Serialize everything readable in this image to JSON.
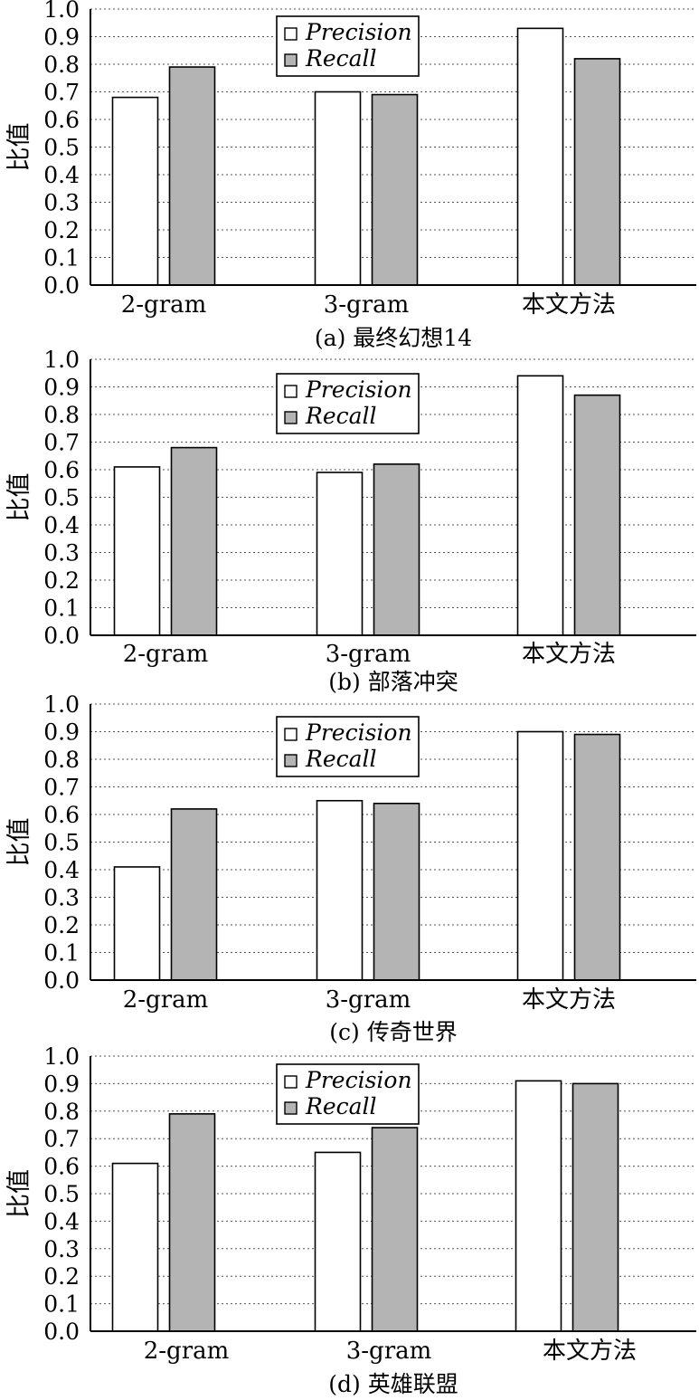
{
  "chart_data": [
    {
      "type": "bar",
      "caption": "(a) 最终幻想14",
      "ylabel": "比值",
      "categories": [
        "2-gram",
        "3-gram",
        "本文方法"
      ],
      "series": [
        {
          "name": "Precision",
          "values": [
            0.68,
            0.7,
            0.93
          ],
          "color": "#ffffff"
        },
        {
          "name": "Recall",
          "values": [
            0.79,
            0.69,
            0.82
          ],
          "color": "#b4b4b4"
        }
      ],
      "ylim": [
        0,
        1.0
      ],
      "yticks": [
        "0.0",
        "0.1",
        "0.2",
        "0.3",
        "0.4",
        "0.5",
        "0.6",
        "0.7",
        "0.8",
        "0.9",
        "1.0"
      ],
      "grid": true,
      "legend": "top-center"
    },
    {
      "type": "bar",
      "caption": "(b) 部落冲突",
      "ylabel": "比值",
      "categories": [
        "2-gram",
        "3-gram",
        "本文方法"
      ],
      "series": [
        {
          "name": "Precision",
          "values": [
            0.61,
            0.59,
            0.94
          ],
          "color": "#ffffff"
        },
        {
          "name": "Recall",
          "values": [
            0.68,
            0.62,
            0.87
          ],
          "color": "#b4b4b4"
        }
      ],
      "ylim": [
        0,
        1.0
      ],
      "yticks": [
        "0.0",
        "0.1",
        "0.2",
        "0.3",
        "0.4",
        "0.5",
        "0.6",
        "0.7",
        "0.8",
        "0.9",
        "1.0"
      ],
      "grid": true,
      "legend": "top-center"
    },
    {
      "type": "bar",
      "caption": "(c) 传奇世界",
      "ylabel": "比值",
      "categories": [
        "2-gram",
        "3-gram",
        "本文方法"
      ],
      "series": [
        {
          "name": "Precision",
          "values": [
            0.41,
            0.65,
            0.9
          ],
          "color": "#ffffff"
        },
        {
          "name": "Recall",
          "values": [
            0.62,
            0.64,
            0.89
          ],
          "color": "#b4b4b4"
        }
      ],
      "ylim": [
        0,
        1.0
      ],
      "yticks": [
        "0.0",
        "0.1",
        "0.2",
        "0.3",
        "0.4",
        "0.5",
        "0.6",
        "0.7",
        "0.8",
        "0.9",
        "1.0"
      ],
      "grid": true,
      "legend": "top-center"
    },
    {
      "type": "bar",
      "caption": "(d) 英雄联盟",
      "ylabel": "比值",
      "categories": [
        "2-gram",
        "3-gram",
        "本文方法"
      ],
      "series": [
        {
          "name": "Precision",
          "values": [
            0.61,
            0.65,
            0.91
          ],
          "color": "#ffffff"
        },
        {
          "name": "Recall",
          "values": [
            0.79,
            0.74,
            0.9
          ],
          "color": "#b4b4b4"
        }
      ],
      "ylim": [
        0,
        1.0
      ],
      "yticks": [
        "0.0",
        "0.1",
        "0.2",
        "0.3",
        "0.4",
        "0.5",
        "0.6",
        "0.7",
        "0.8",
        "0.9",
        "1.0"
      ],
      "grid": true,
      "legend": "top-center"
    }
  ]
}
